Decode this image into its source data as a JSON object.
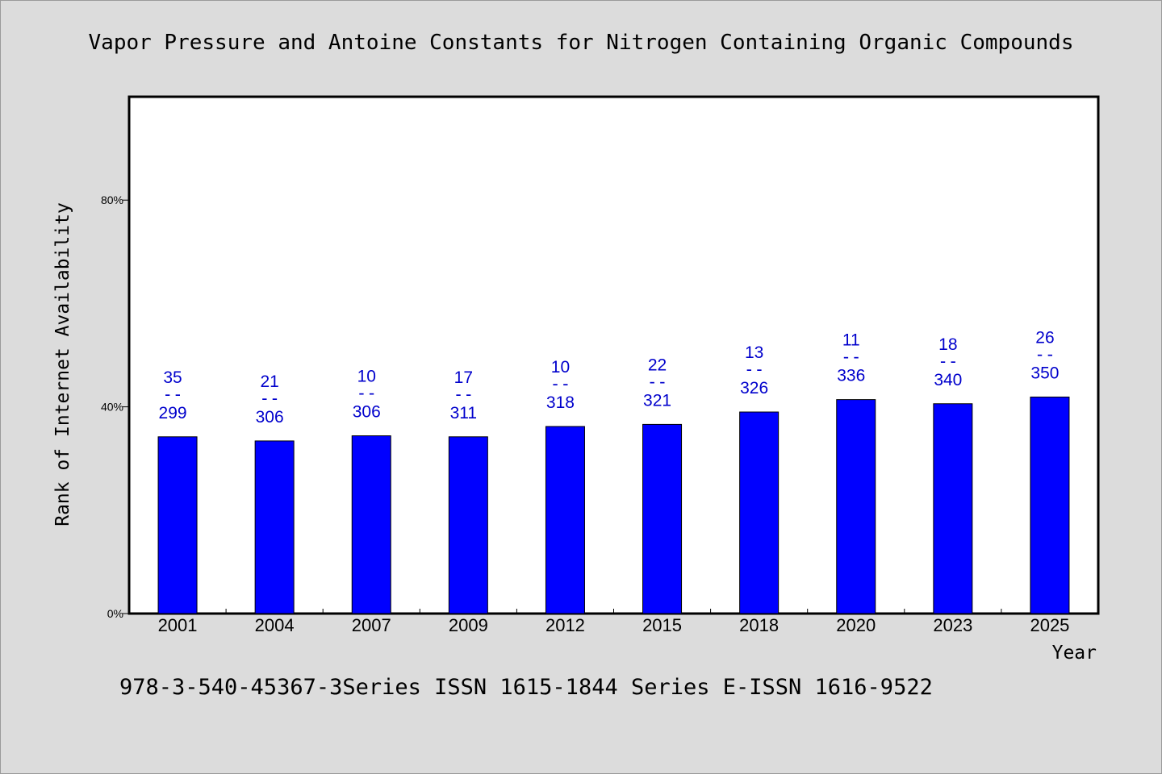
{
  "chart_data": {
    "type": "bar",
    "title": "Vapor Pressure and Antoine Constants for Nitrogen Containing Organic Compounds",
    "xlabel": "Year",
    "ylabel": "Rank of Internet Availability",
    "categories": [
      "2001",
      "2004",
      "2007",
      "2009",
      "2012",
      "2015",
      "2018",
      "2020",
      "2023",
      "2025"
    ],
    "values": [
      34.2,
      33.4,
      34.4,
      34.2,
      36.2,
      36.6,
      39.0,
      41.4,
      40.6,
      41.9
    ],
    "labels_top": [
      "35",
      "21",
      "10",
      "17",
      "10",
      "22",
      "13",
      "11",
      "18",
      "26"
    ],
    "labels_bottom": [
      "299",
      "306",
      "306",
      "311",
      "318",
      "321",
      "326",
      "336",
      "340",
      "350"
    ],
    "label_separator": "--",
    "yticks": [
      0,
      40,
      80
    ],
    "ytick_labels": [
      "0%",
      "40%",
      "80%"
    ],
    "ylim": [
      0,
      100
    ],
    "grid": false,
    "bar_color": "#0000ff",
    "label_color": "#0000cc"
  },
  "footer": "978-3-540-45367-3Series ISSN 1615-1844 Series E-ISSN 1616-9522"
}
